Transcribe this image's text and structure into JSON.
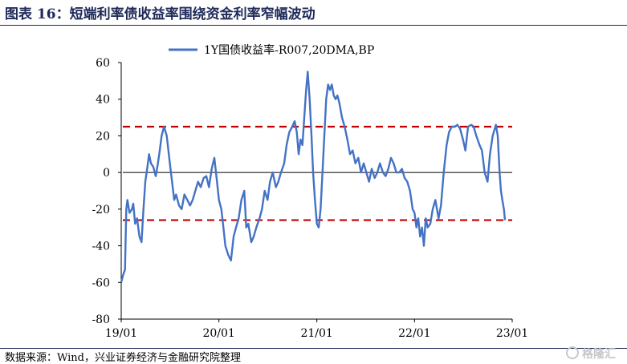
{
  "header": {
    "title": "图表 16：短端利率债收益率围绕资金利率窄幅波动"
  },
  "footer": {
    "source": "数据来源：Wind，兴业证券经济与金融研究院整理"
  },
  "watermark": {
    "text": "格隆汇"
  },
  "chart_data": {
    "type": "line",
    "title": "",
    "xlabel": "",
    "ylabel": "",
    "ylim": [
      -80,
      60
    ],
    "yticks": [
      -80,
      -60,
      -40,
      -20,
      0,
      20,
      40,
      60
    ],
    "xlim": [
      "2019-01-01",
      "2023-01-01"
    ],
    "xticks": [
      {
        "date": "2019-01-01",
        "label": "19/01"
      },
      {
        "date": "2020-01-01",
        "label": "20/01"
      },
      {
        "date": "2021-01-01",
        "label": "21/01"
      },
      {
        "date": "2022-01-01",
        "label": "22/01"
      },
      {
        "date": "2023-01-01",
        "label": "23/01"
      }
    ],
    "grid": false,
    "legend": "top-center",
    "reference_lines": [
      {
        "y": 25,
        "color": "#c00000",
        "style": "dashed"
      },
      {
        "y": -26,
        "color": "#c00000",
        "style": "dashed"
      },
      {
        "y": 0,
        "color": "#000000",
        "style": "solid"
      }
    ],
    "series": [
      {
        "name": "1Y国债收益率-R007,20DMA,BP",
        "color": "#4472c4",
        "points": [
          [
            "2019-01-01",
            -60
          ],
          [
            "2019-01-08",
            -56
          ],
          [
            "2019-01-15",
            -53
          ],
          [
            "2019-01-20",
            -20
          ],
          [
            "2019-01-24",
            -15
          ],
          [
            "2019-02-01",
            -22
          ],
          [
            "2019-02-10",
            -20
          ],
          [
            "2019-02-15",
            -17
          ],
          [
            "2019-02-22",
            -28
          ],
          [
            "2019-03-01",
            -25
          ],
          [
            "2019-03-10",
            -35
          ],
          [
            "2019-03-18",
            -38
          ],
          [
            "2019-03-25",
            -20
          ],
          [
            "2019-04-01",
            -5
          ],
          [
            "2019-04-08",
            2
          ],
          [
            "2019-04-15",
            10
          ],
          [
            "2019-04-22",
            5
          ],
          [
            "2019-05-01",
            3
          ],
          [
            "2019-05-10",
            -2
          ],
          [
            "2019-05-18",
            5
          ],
          [
            "2019-05-25",
            12
          ],
          [
            "2019-06-01",
            20
          ],
          [
            "2019-06-10",
            25
          ],
          [
            "2019-06-20",
            20
          ],
          [
            "2019-07-01",
            6
          ],
          [
            "2019-07-10",
            -5
          ],
          [
            "2019-07-18",
            -15
          ],
          [
            "2019-07-25",
            -12
          ],
          [
            "2019-08-05",
            -18
          ],
          [
            "2019-08-15",
            -20
          ],
          [
            "2019-08-25",
            -12
          ],
          [
            "2019-09-05",
            -15
          ],
          [
            "2019-09-15",
            -18
          ],
          [
            "2019-09-25",
            -15
          ],
          [
            "2019-10-05",
            -10
          ],
          [
            "2019-10-15",
            -5
          ],
          [
            "2019-10-25",
            -8
          ],
          [
            "2019-11-05",
            -3
          ],
          [
            "2019-11-15",
            -2
          ],
          [
            "2019-11-25",
            -8
          ],
          [
            "2019-12-05",
            2
          ],
          [
            "2019-12-15",
            8
          ],
          [
            "2019-12-25",
            -5
          ],
          [
            "2020-01-01",
            -15
          ],
          [
            "2020-01-10",
            -20
          ],
          [
            "2020-01-18",
            -30
          ],
          [
            "2020-01-25",
            -40
          ],
          [
            "2020-02-05",
            -45
          ],
          [
            "2020-02-15",
            -48
          ],
          [
            "2020-02-25",
            -35
          ],
          [
            "2020-03-05",
            -30
          ],
          [
            "2020-03-15",
            -25
          ],
          [
            "2020-03-25",
            -15
          ],
          [
            "2020-04-05",
            -10
          ],
          [
            "2020-04-12",
            -30
          ],
          [
            "2020-04-20",
            -28
          ],
          [
            "2020-05-01",
            -38
          ],
          [
            "2020-05-10",
            -35
          ],
          [
            "2020-05-20",
            -30
          ],
          [
            "2020-06-01",
            -25
          ],
          [
            "2020-06-10",
            -20
          ],
          [
            "2020-06-20",
            -10
          ],
          [
            "2020-07-01",
            -15
          ],
          [
            "2020-07-10",
            -5
          ],
          [
            "2020-07-20",
            0
          ],
          [
            "2020-08-01",
            -8
          ],
          [
            "2020-08-10",
            -5
          ],
          [
            "2020-08-20",
            0
          ],
          [
            "2020-09-01",
            5
          ],
          [
            "2020-09-10",
            15
          ],
          [
            "2020-09-20",
            22
          ],
          [
            "2020-10-01",
            25
          ],
          [
            "2020-10-10",
            28
          ],
          [
            "2020-10-18",
            22
          ],
          [
            "2020-10-25",
            10
          ],
          [
            "2020-11-01",
            18
          ],
          [
            "2020-11-08",
            15
          ],
          [
            "2020-11-15",
            30
          ],
          [
            "2020-11-22",
            45
          ],
          [
            "2020-11-28",
            55
          ],
          [
            "2020-12-05",
            40
          ],
          [
            "2020-12-12",
            20
          ],
          [
            "2020-12-18",
            0
          ],
          [
            "2020-12-25",
            -15
          ],
          [
            "2021-01-01",
            -28
          ],
          [
            "2021-01-08",
            -30
          ],
          [
            "2021-01-15",
            -20
          ],
          [
            "2021-01-22",
            0
          ],
          [
            "2021-01-29",
            20
          ],
          [
            "2021-02-05",
            40
          ],
          [
            "2021-02-12",
            48
          ],
          [
            "2021-02-19",
            45
          ],
          [
            "2021-02-26",
            48
          ],
          [
            "2021-03-05",
            42
          ],
          [
            "2021-03-12",
            40
          ],
          [
            "2021-03-19",
            42
          ],
          [
            "2021-03-26",
            38
          ],
          [
            "2021-04-05",
            30
          ],
          [
            "2021-04-15",
            25
          ],
          [
            "2021-04-25",
            18
          ],
          [
            "2021-05-05",
            10
          ],
          [
            "2021-05-15",
            12
          ],
          [
            "2021-05-25",
            5
          ],
          [
            "2021-06-05",
            8
          ],
          [
            "2021-06-15",
            0
          ],
          [
            "2021-06-25",
            5
          ],
          [
            "2021-07-05",
            0
          ],
          [
            "2021-07-15",
            -5
          ],
          [
            "2021-07-25",
            2
          ],
          [
            "2021-08-05",
            -3
          ],
          [
            "2021-08-15",
            0
          ],
          [
            "2021-08-25",
            5
          ],
          [
            "2021-09-05",
            0
          ],
          [
            "2021-09-15",
            -2
          ],
          [
            "2021-09-25",
            2
          ],
          [
            "2021-10-05",
            8
          ],
          [
            "2021-10-15",
            5
          ],
          [
            "2021-10-25",
            0
          ],
          [
            "2021-11-05",
            0
          ],
          [
            "2021-11-15",
            2
          ],
          [
            "2021-11-25",
            -3
          ],
          [
            "2021-12-05",
            -5
          ],
          [
            "2021-12-15",
            -10
          ],
          [
            "2021-12-25",
            -20
          ],
          [
            "2022-01-01",
            -22
          ],
          [
            "2022-01-08",
            -30
          ],
          [
            "2022-01-15",
            -25
          ],
          [
            "2022-01-22",
            -35
          ],
          [
            "2022-01-29",
            -30
          ],
          [
            "2022-02-05",
            -40
          ],
          [
            "2022-02-12",
            -25
          ],
          [
            "2022-02-19",
            -30
          ],
          [
            "2022-03-01",
            -28
          ],
          [
            "2022-03-10",
            -20
          ],
          [
            "2022-03-20",
            -15
          ],
          [
            "2022-04-01",
            -25
          ],
          [
            "2022-04-10",
            -18
          ],
          [
            "2022-04-20",
            0
          ],
          [
            "2022-05-01",
            15
          ],
          [
            "2022-05-10",
            22
          ],
          [
            "2022-05-20",
            25
          ],
          [
            "2022-06-01",
            25
          ],
          [
            "2022-06-10",
            26
          ],
          [
            "2022-06-20",
            24
          ],
          [
            "2022-07-01",
            18
          ],
          [
            "2022-07-10",
            12
          ],
          [
            "2022-07-20",
            25
          ],
          [
            "2022-08-01",
            26
          ],
          [
            "2022-08-10",
            25
          ],
          [
            "2022-08-20",
            20
          ],
          [
            "2022-09-01",
            15
          ],
          [
            "2022-09-10",
            12
          ],
          [
            "2022-09-20",
            0
          ],
          [
            "2022-10-01",
            -5
          ],
          [
            "2022-10-10",
            10
          ],
          [
            "2022-10-20",
            20
          ],
          [
            "2022-11-01",
            26
          ],
          [
            "2022-11-08",
            20
          ],
          [
            "2022-11-15",
            0
          ],
          [
            "2022-11-20",
            -10
          ],
          [
            "2022-11-25",
            -15
          ],
          [
            "2022-12-01",
            -20
          ],
          [
            "2022-12-05",
            -26
          ]
        ]
      }
    ]
  }
}
